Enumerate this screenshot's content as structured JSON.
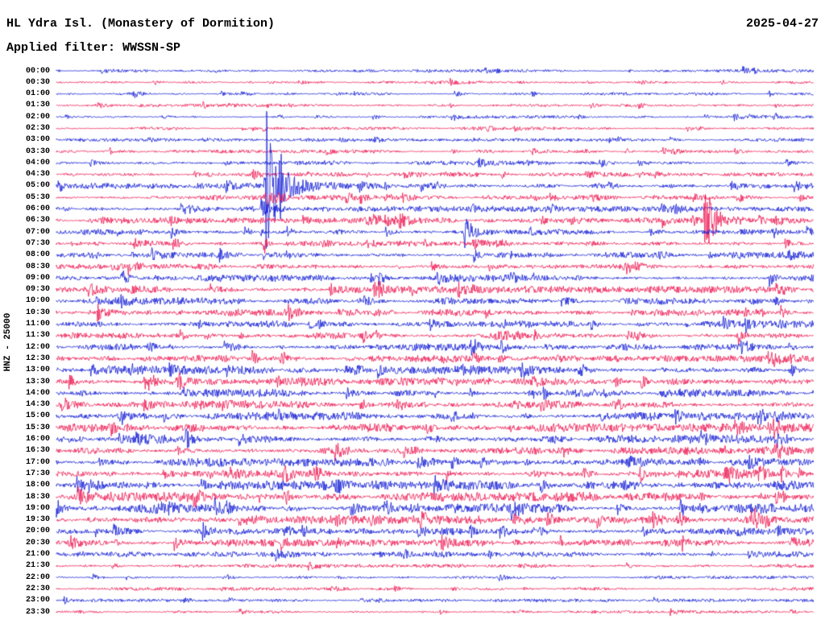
{
  "header": {
    "title": "HL Ydra Isl. (Monastery of Dormition)",
    "date": "2025-04-27",
    "filter_label": "Applied filter: WWSSN-SP"
  },
  "axis": {
    "channel_label": "HNZ - 25000"
  },
  "colors": {
    "background": "#ffffff",
    "text": "#000000"
  },
  "chart_data": {
    "type": "line",
    "subtype": "helicorder-drum-record",
    "title": "HL Ydra Isl. (Monastery of Dormition)",
    "date": "2025-04-27",
    "filter": "WWSSN-SP",
    "channel": "HNZ",
    "amplitude_scale": 25000,
    "minutes_per_row": 30,
    "grid": false,
    "legend": false,
    "trace_colors": {
      "blue": "#101bd4",
      "red": "#ed1650"
    },
    "rows": [
      {
        "t": "00:00",
        "c": "blue",
        "a": 1.0
      },
      {
        "t": "00:30",
        "c": "red",
        "a": 1.0
      },
      {
        "t": "01:00",
        "c": "blue",
        "a": 1.0
      },
      {
        "t": "01:30",
        "c": "red",
        "a": 1.0
      },
      {
        "t": "02:00",
        "c": "blue",
        "a": 1.0
      },
      {
        "t": "02:30",
        "c": "red",
        "a": 1.0
      },
      {
        "t": "03:00",
        "c": "blue",
        "a": 1.1
      },
      {
        "t": "03:30",
        "c": "red",
        "a": 1.1
      },
      {
        "t": "04:00",
        "c": "blue",
        "a": 1.4
      },
      {
        "t": "04:30",
        "c": "red",
        "a": 1.5
      },
      {
        "t": "05:00",
        "c": "blue",
        "a": 1.8
      },
      {
        "t": "05:30",
        "c": "red",
        "a": 1.8
      },
      {
        "t": "06:00",
        "c": "blue",
        "a": 1.8
      },
      {
        "t": "06:30",
        "c": "red",
        "a": 1.8
      },
      {
        "t": "07:00",
        "c": "blue",
        "a": 1.8
      },
      {
        "t": "07:30",
        "c": "red",
        "a": 1.8
      },
      {
        "t": "08:00",
        "c": "blue",
        "a": 2.0
      },
      {
        "t": "08:30",
        "c": "red",
        "a": 2.2
      },
      {
        "t": "09:00",
        "c": "blue",
        "a": 2.2
      },
      {
        "t": "09:30",
        "c": "red",
        "a": 2.2
      },
      {
        "t": "10:00",
        "c": "blue",
        "a": 2.2
      },
      {
        "t": "10:30",
        "c": "red",
        "a": 2.2
      },
      {
        "t": "11:00",
        "c": "blue",
        "a": 2.2
      },
      {
        "t": "11:30",
        "c": "red",
        "a": 2.2
      },
      {
        "t": "12:00",
        "c": "blue",
        "a": 2.2
      },
      {
        "t": "12:30",
        "c": "red",
        "a": 2.2
      },
      {
        "t": "13:00",
        "c": "blue",
        "a": 2.6
      },
      {
        "t": "13:30",
        "c": "red",
        "a": 2.6
      },
      {
        "t": "14:00",
        "c": "blue",
        "a": 2.6
      },
      {
        "t": "14:30",
        "c": "red",
        "a": 2.6
      },
      {
        "t": "15:00",
        "c": "blue",
        "a": 2.6
      },
      {
        "t": "15:30",
        "c": "red",
        "a": 2.6
      },
      {
        "t": "16:00",
        "c": "blue",
        "a": 2.6
      },
      {
        "t": "16:30",
        "c": "red",
        "a": 2.6
      },
      {
        "t": "17:00",
        "c": "blue",
        "a": 2.6
      },
      {
        "t": "17:30",
        "c": "red",
        "a": 2.6
      },
      {
        "t": "18:00",
        "c": "blue",
        "a": 3.0
      },
      {
        "t": "18:30",
        "c": "red",
        "a": 3.0
      },
      {
        "t": "19:00",
        "c": "blue",
        "a": 3.0
      },
      {
        "t": "19:30",
        "c": "red",
        "a": 2.6
      },
      {
        "t": "20:00",
        "c": "blue",
        "a": 2.2
      },
      {
        "t": "20:30",
        "c": "red",
        "a": 2.2
      },
      {
        "t": "21:00",
        "c": "blue",
        "a": 1.8
      },
      {
        "t": "21:30",
        "c": "red",
        "a": 1.2
      },
      {
        "t": "22:00",
        "c": "blue",
        "a": 1.0
      },
      {
        "t": "22:30",
        "c": "red",
        "a": 1.0
      },
      {
        "t": "23:00",
        "c": "blue",
        "a": 1.0
      },
      {
        "t": "23:30",
        "c": "red",
        "a": 1.0
      }
    ],
    "events_format": [
      "row_index",
      "x_fraction_of_row",
      "peak_amplitude_px",
      "decay_fraction",
      "rise_fraction"
    ],
    "events": [
      [
        0,
        0.21,
        3,
        0.004,
        0.002
      ],
      [
        0,
        0.92,
        3,
        0.004,
        0.002
      ],
      [
        1,
        0.52,
        5,
        0.006,
        0.002
      ],
      [
        1,
        0.615,
        3,
        0.004,
        0.002
      ],
      [
        1,
        0.77,
        4,
        0.005,
        0.002
      ],
      [
        2,
        0.37,
        3,
        0.004,
        0.002
      ],
      [
        3,
        0.52,
        3.5,
        0.005,
        0.002
      ],
      [
        3,
        0.95,
        3,
        0.004,
        0.002
      ],
      [
        4,
        0.69,
        3,
        0.004,
        0.002
      ],
      [
        4,
        0.95,
        3.5,
        0.004,
        0.002
      ],
      [
        5,
        0.55,
        3,
        0.004,
        0.002
      ],
      [
        6,
        0.55,
        4,
        0.005,
        0.002
      ],
      [
        6,
        0.73,
        3,
        0.004,
        0.002
      ],
      [
        7,
        0.07,
        9,
        0.0025,
        0.001
      ],
      [
        7,
        0.75,
        3,
        0.004,
        0.002
      ],
      [
        8,
        0.045,
        5,
        0.012,
        0.004
      ],
      [
        8,
        0.35,
        3,
        0.004,
        0.002
      ],
      [
        8,
        0.62,
        3,
        0.004,
        0.002
      ],
      [
        9,
        0.2,
        4,
        0.005,
        0.002
      ],
      [
        9,
        0.26,
        5,
        0.006,
        0.002
      ],
      [
        9,
        0.41,
        4,
        0.005,
        0.002
      ],
      [
        9,
        0.7,
        5,
        0.008,
        0.003
      ],
      [
        10,
        0.277,
        110,
        0.02,
        0.003
      ],
      [
        10,
        0.4,
        8,
        0.008,
        0.003
      ],
      [
        10,
        0.5,
        5,
        0.006,
        0.002
      ],
      [
        10,
        0.73,
        6,
        0.006,
        0.002
      ],
      [
        10,
        0.93,
        4,
        0.005,
        0.002
      ],
      [
        11,
        0.277,
        12,
        0.02,
        0.004
      ],
      [
        11,
        0.4,
        8,
        0.01,
        0.003
      ],
      [
        11,
        0.63,
        4,
        0.005,
        0.002
      ],
      [
        11,
        0.84,
        5,
        0.006,
        0.002
      ],
      [
        12,
        0.17,
        5,
        0.005,
        0.002
      ],
      [
        12,
        0.27,
        18,
        0.015,
        0.002
      ],
      [
        12,
        0.55,
        4,
        0.005,
        0.002
      ],
      [
        12,
        0.8,
        6,
        0.006,
        0.002
      ],
      [
        13,
        0.06,
        4,
        0.005,
        0.002
      ],
      [
        13,
        0.42,
        8,
        0.03,
        0.02
      ],
      [
        13,
        0.857,
        55,
        0.012,
        0.003
      ],
      [
        13,
        0.95,
        7,
        0.008,
        0.002
      ],
      [
        14,
        0.08,
        4,
        0.004,
        0.002
      ],
      [
        14,
        0.27,
        5,
        0.005,
        0.002
      ],
      [
        14,
        0.54,
        22,
        0.01,
        0.003
      ],
      [
        14,
        0.945,
        9,
        0.006,
        0.002
      ],
      [
        15,
        0.273,
        22,
        0.004,
        0.001
      ],
      [
        15,
        0.35,
        5,
        0.005,
        0.002
      ],
      [
        15,
        0.58,
        6,
        0.006,
        0.002
      ],
      [
        16,
        0.1,
        4,
        0.005,
        0.002
      ],
      [
        16,
        0.273,
        6,
        0.004,
        0.001
      ],
      [
        16,
        0.6,
        4,
        0.005,
        0.002
      ],
      [
        16,
        0.9,
        4,
        0.004,
        0.002
      ],
      [
        17,
        0.45,
        4,
        0.005,
        0.002
      ],
      [
        17,
        0.75,
        4,
        0.005,
        0.002
      ],
      [
        18,
        0.13,
        5,
        0.005,
        0.002
      ],
      [
        18,
        0.63,
        6,
        0.006,
        0.002
      ],
      [
        19,
        0.1,
        5,
        0.006,
        0.002
      ],
      [
        19,
        0.55,
        4,
        0.004,
        0.002
      ],
      [
        20,
        0.4,
        5,
        0.005,
        0.002
      ],
      [
        20,
        0.95,
        6,
        0.006,
        0.002
      ],
      [
        21,
        0.3,
        4,
        0.004,
        0.002
      ],
      [
        21,
        0.957,
        13,
        0.006,
        0.002
      ],
      [
        22,
        0.335,
        10,
        0.006,
        0.002
      ],
      [
        22,
        0.83,
        5,
        0.005,
        0.002
      ],
      [
        23,
        0.42,
        4,
        0.004,
        0.002
      ],
      [
        23,
        0.9,
        6,
        0.006,
        0.002
      ],
      [
        24,
        0.15,
        5,
        0.005,
        0.002
      ],
      [
        24,
        0.548,
        11,
        0.007,
        0.002
      ],
      [
        25,
        0.3,
        4,
        0.004,
        0.002
      ],
      [
        25,
        0.97,
        5,
        0.005,
        0.002
      ],
      [
        26,
        0.1,
        6,
        0.008,
        0.003
      ],
      [
        27,
        0.12,
        8,
        0.01,
        0.003
      ],
      [
        27,
        0.2,
        6,
        0.006,
        0.002
      ],
      [
        28,
        0.5,
        5,
        0.005,
        0.002
      ],
      [
        28,
        0.63,
        6,
        0.005,
        0.002
      ],
      [
        28,
        0.8,
        6,
        0.005,
        0.002
      ],
      [
        29,
        0.22,
        5,
        0.005,
        0.002
      ],
      [
        29,
        0.45,
        9,
        0.006,
        0.002
      ],
      [
        30,
        0.085,
        11,
        0.006,
        0.002
      ],
      [
        30,
        0.55,
        5,
        0.005,
        0.002
      ],
      [
        30,
        0.95,
        7,
        0.006,
        0.002
      ],
      [
        31,
        0.6,
        5,
        0.005,
        0.002
      ],
      [
        31,
        0.94,
        9,
        0.007,
        0.002
      ],
      [
        32,
        0.5,
        5,
        0.005,
        0.002
      ],
      [
        32,
        0.95,
        8,
        0.006,
        0.002
      ],
      [
        33,
        0.16,
        6,
        0.006,
        0.002
      ],
      [
        33,
        0.67,
        5,
        0.005,
        0.002
      ],
      [
        34,
        0.2,
        5,
        0.005,
        0.002
      ],
      [
        34,
        0.62,
        7,
        0.006,
        0.002
      ],
      [
        34,
        0.85,
        6,
        0.005,
        0.002
      ],
      [
        35,
        0.2,
        6,
        0.006,
        0.002
      ],
      [
        35,
        0.77,
        6,
        0.005,
        0.002
      ],
      [
        36,
        0.37,
        8,
        0.012,
        0.004
      ],
      [
        36,
        0.75,
        5,
        0.005,
        0.002
      ],
      [
        37,
        0.3,
        5,
        0.005,
        0.002
      ],
      [
        37,
        0.55,
        6,
        0.006,
        0.002
      ],
      [
        37,
        0.85,
        7,
        0.006,
        0.002
      ],
      [
        38,
        0.13,
        8,
        0.008,
        0.003
      ],
      [
        38,
        0.85,
        9,
        0.007,
        0.002
      ],
      [
        38,
        0.93,
        7,
        0.005,
        0.002
      ],
      [
        39,
        0.5,
        4,
        0.004,
        0.002
      ],
      [
        39,
        0.75,
        4,
        0.004,
        0.002
      ],
      [
        40,
        0.3,
        5,
        0.005,
        0.002
      ],
      [
        40,
        0.63,
        4,
        0.004,
        0.002
      ],
      [
        41,
        0.37,
        5,
        0.005,
        0.002
      ],
      [
        41,
        0.665,
        11,
        0.005,
        0.002
      ],
      [
        42,
        0.5,
        4,
        0.005,
        0.002
      ],
      [
        44,
        0.22,
        3,
        0.003,
        0.002
      ]
    ]
  }
}
